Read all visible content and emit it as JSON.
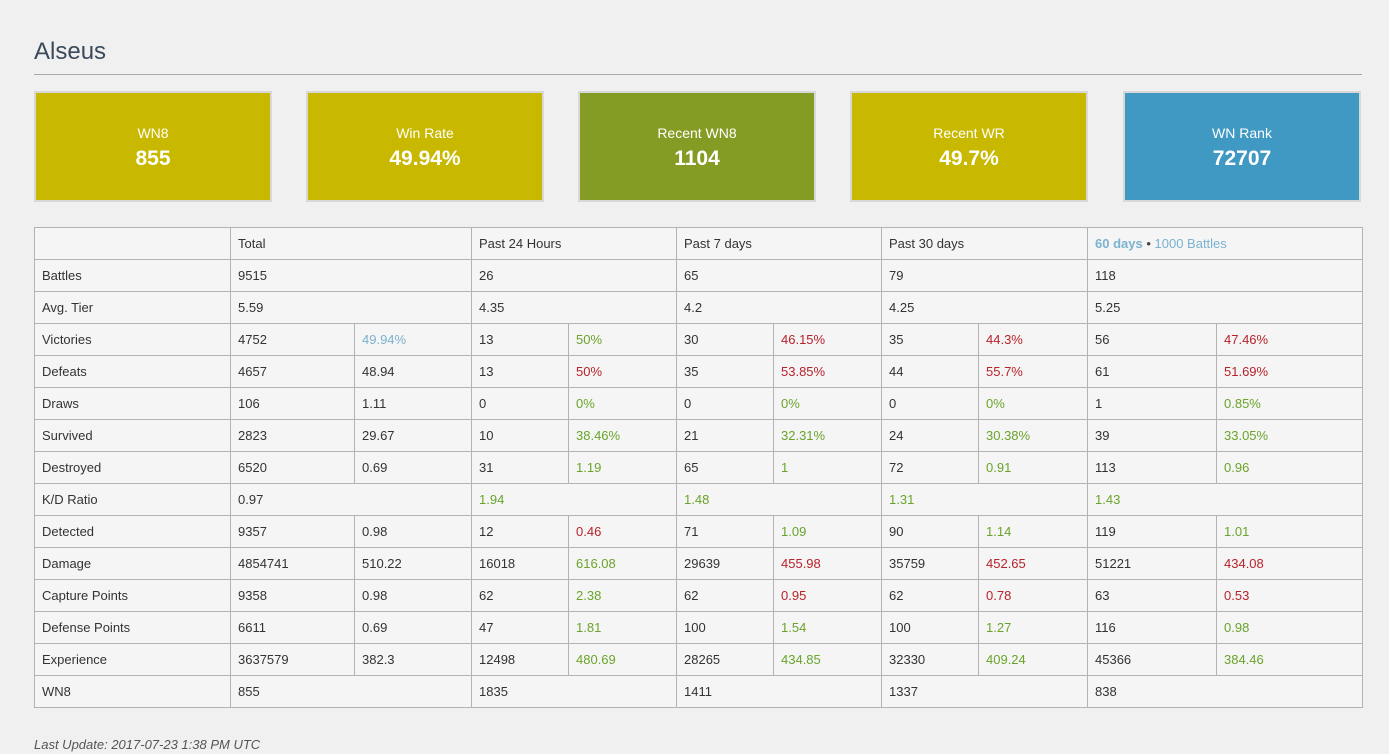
{
  "player": {
    "name": "Alseus"
  },
  "cards": [
    {
      "label": "WN8",
      "value": "855",
      "color": "#c8b800"
    },
    {
      "label": "Win Rate",
      "value": "49.94%",
      "color": "#c8b800"
    },
    {
      "label": "Recent WN8",
      "value": "1104",
      "color": "#849c24"
    },
    {
      "label": "Recent WR",
      "value": "49.7%",
      "color": "#c8b800"
    },
    {
      "label": "WN Rank",
      "value": "72707",
      "color": "#3f99c3"
    }
  ],
  "table": {
    "headers": {
      "total": "Total",
      "past24": "Past 24 Hours",
      "past7": "Past 7 days",
      "past30": "Past 30 days",
      "recent_days": "60 days",
      "recent_sep": "•",
      "recent_battles": "1000 Battles"
    },
    "rows": {
      "battles": {
        "label": "Battles",
        "total": "9515",
        "d1": "26",
        "d7": "65",
        "d30": "79",
        "recent": "118"
      },
      "avg_tier": {
        "label": "Avg. Tier",
        "total": "5.59",
        "d1": "4.35",
        "d7": "4.2",
        "d30": "4.25",
        "recent": "5.25"
      },
      "victories": {
        "label": "Victories",
        "total": "4752",
        "total_pct": "49.94%",
        "d1": "13",
        "d1_pct": "50%",
        "d7": "30",
        "d7_pct": "46.15%",
        "d30": "35",
        "d30_pct": "44.3%",
        "recent": "56",
        "recent_pct": "47.46%"
      },
      "defeats": {
        "label": "Defeats",
        "total": "4657",
        "total_pct": "48.94",
        "d1": "13",
        "d1_pct": "50%",
        "d7": "35",
        "d7_pct": "53.85%",
        "d30": "44",
        "d30_pct": "55.7%",
        "recent": "61",
        "recent_pct": "51.69%"
      },
      "draws": {
        "label": "Draws",
        "total": "106",
        "total_pct": "1.11",
        "d1": "0",
        "d1_pct": "0%",
        "d7": "0",
        "d7_pct": "0%",
        "d30": "0",
        "d30_pct": "0%",
        "recent": "1",
        "recent_pct": "0.85%"
      },
      "survived": {
        "label": "Survived",
        "total": "2823",
        "total_pct": "29.67",
        "d1": "10",
        "d1_pct": "38.46%",
        "d7": "21",
        "d7_pct": "32.31%",
        "d30": "24",
        "d30_pct": "30.38%",
        "recent": "39",
        "recent_pct": "33.05%"
      },
      "destroyed": {
        "label": "Destroyed",
        "total": "6520",
        "total_pct": "0.69",
        "d1": "31",
        "d1_pct": "1.19",
        "d7": "65",
        "d7_pct": "1",
        "d30": "72",
        "d30_pct": "0.91",
        "recent": "113",
        "recent_pct": "0.96"
      },
      "kd": {
        "label": "K/D Ratio",
        "total": "0.97",
        "d1": "1.94",
        "d7": "1.48",
        "d30": "1.31",
        "recent": "1.43"
      },
      "detected": {
        "label": "Detected",
        "total": "9357",
        "total_pct": "0.98",
        "d1": "12",
        "d1_pct": "0.46",
        "d7": "71",
        "d7_pct": "1.09",
        "d30": "90",
        "d30_pct": "1.14",
        "recent": "119",
        "recent_pct": "1.01"
      },
      "damage": {
        "label": "Damage",
        "total": "4854741",
        "total_pct": "510.22",
        "d1": "16018",
        "d1_pct": "616.08",
        "d7": "29639",
        "d7_pct": "455.98",
        "d30": "35759",
        "d30_pct": "452.65",
        "recent": "51221",
        "recent_pct": "434.08"
      },
      "capture": {
        "label": "Capture Points",
        "total": "9358",
        "total_pct": "0.98",
        "d1": "62",
        "d1_pct": "2.38",
        "d7": "62",
        "d7_pct": "0.95",
        "d30": "62",
        "d30_pct": "0.78",
        "recent": "63",
        "recent_pct": "0.53"
      },
      "defense": {
        "label": "Defense Points",
        "total": "6611",
        "total_pct": "0.69",
        "d1": "47",
        "d1_pct": "1.81",
        "d7": "100",
        "d7_pct": "1.54",
        "d30": "100",
        "d30_pct": "1.27",
        "recent": "116",
        "recent_pct": "0.98"
      },
      "experience": {
        "label": "Experience",
        "total": "3637579",
        "total_pct": "382.3",
        "d1": "12498",
        "d1_pct": "480.69",
        "d7": "28265",
        "d7_pct": "434.85",
        "d30": "32330",
        "d30_pct": "409.24",
        "recent": "45366",
        "recent_pct": "384.46"
      },
      "wn8": {
        "label": "WN8",
        "total": "855",
        "d1": "1835",
        "d7": "1411",
        "d30": "1337",
        "recent": "838"
      }
    }
  },
  "footer": {
    "last_update": "Last Update: 2017-07-23 1:38 PM UTC"
  },
  "colors": {
    "good": "#6aa42b",
    "bad": "#b8222a",
    "average": "#7ab2cf",
    "link": "#7ab2cf"
  }
}
